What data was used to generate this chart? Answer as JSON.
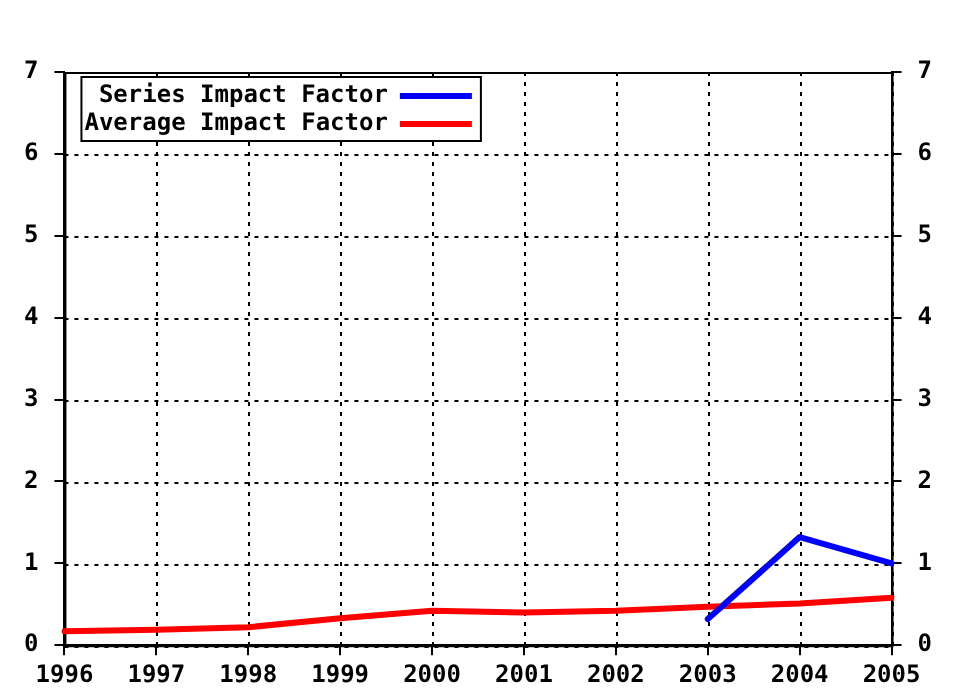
{
  "chart_data": {
    "type": "line",
    "categories": [
      "1996",
      "1997",
      "1998",
      "1999",
      "2000",
      "2001",
      "2002",
      "2003",
      "2004",
      "2005"
    ],
    "series": [
      {
        "name": "Series Impact Factor",
        "color": "#0000ff",
        "values": [
          null,
          null,
          null,
          null,
          null,
          null,
          null,
          0.32,
          1.32,
          1.0
        ]
      },
      {
        "name": "Average Impact Factor",
        "color": "#ff0000",
        "values": [
          0.17,
          0.19,
          0.22,
          0.33,
          0.42,
          0.4,
          0.42,
          0.47,
          0.51,
          0.58
        ]
      }
    ],
    "ylim": [
      0,
      7
    ],
    "yticks": [
      0,
      1,
      2,
      3,
      4,
      5,
      6,
      7
    ],
    "y2lim": [
      0,
      7
    ],
    "y2ticks": [
      0,
      1,
      2,
      3,
      4,
      5,
      6,
      7
    ],
    "grid": true,
    "legend": "top left",
    "marker": "none",
    "line_style": "solid"
  }
}
